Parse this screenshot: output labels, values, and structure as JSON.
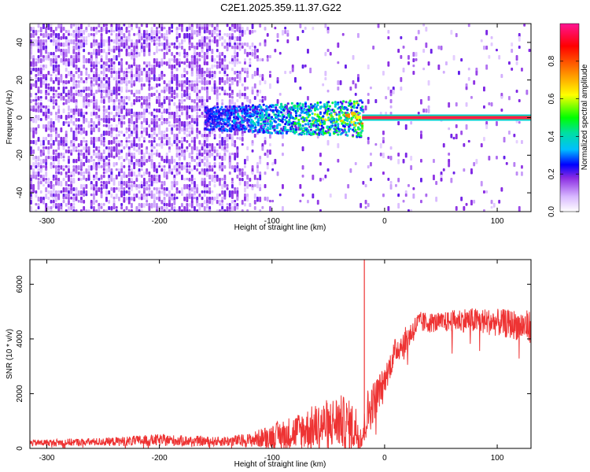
{
  "title": "C2E1.2025.359.11.37.G22",
  "chart_data": [
    {
      "type": "heatmap",
      "name": "spectrogram",
      "xlabel": "Height of straight line (km)",
      "ylabel": "Frequency (Hz)",
      "xlim": [
        -315,
        130
      ],
      "ylim": [
        -50,
        50
      ],
      "xticks": [
        -300,
        -200,
        -100,
        0,
        100
      ],
      "yticks": [
        -40,
        -20,
        0,
        20,
        40
      ],
      "colorbar": {
        "label": "Normalized spectral amplitude",
        "range": [
          0,
          1
        ],
        "ticks": [
          0.0,
          0.2,
          0.4,
          0.6,
          0.8
        ],
        "colors": [
          "#ffffff",
          "#d8b8ff",
          "#8a2be2",
          "#0000ff",
          "#00bfff",
          "#00e0a0",
          "#00ff00",
          "#ffff00",
          "#ff8000",
          "#ff0000",
          "#ff1493"
        ]
      },
      "signal_track": {
        "frequency_hz": 0,
        "strong_from_km": -20,
        "note": "narrow carrier line near 0 Hz, amplitude ~1.0 for heights above about -20 km"
      }
    },
    {
      "type": "line",
      "name": "snr",
      "xlabel": "Height of straight line (km)",
      "ylabel": "SNR (10 * v/v)",
      "xlim": [
        -315,
        130
      ],
      "ylim": [
        0,
        6900
      ],
      "xticks": [
        -300,
        -200,
        -100,
        0,
        100
      ],
      "yticks": [
        0,
        2000,
        4000,
        6000
      ],
      "line_color": "#ee3333",
      "envelope": {
        "x": [
          -315,
          -250,
          -200,
          -150,
          -120,
          -100,
          -80,
          -60,
          -40,
          -25,
          -20,
          -15,
          0,
          10,
          20,
          30,
          50,
          70,
          100,
          130
        ],
        "mean": [
          200,
          240,
          300,
          250,
          300,
          450,
          600,
          800,
          1000,
          700,
          400,
          1300,
          2500,
          3600,
          4000,
          4600,
          4600,
          4700,
          4600,
          4450
        ],
        "amp": [
          120,
          150,
          220,
          170,
          250,
          450,
          650,
          850,
          1000,
          900,
          400,
          900,
          500,
          500,
          500,
          400,
          350,
          450,
          500,
          600
        ]
      },
      "spike": {
        "x": -18,
        "y": 6900
      }
    }
  ]
}
